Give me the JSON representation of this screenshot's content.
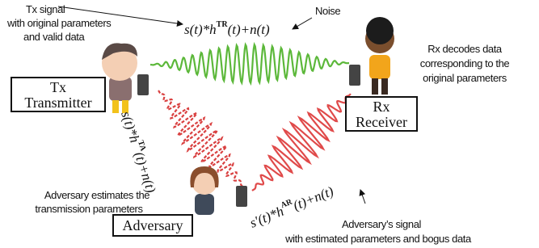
{
  "labels": {
    "tx_signal": [
      "Tx signal",
      "with original parameters",
      "and valid data"
    ],
    "noise": "Noise",
    "rx_decodes": [
      "Rx decodes data",
      "corresponding to the",
      "original parameters"
    ],
    "adversary_estimates": [
      "Adversary estimates the",
      "transmission parameters"
    ],
    "adversary_signal": [
      "Adversary’s signal",
      "with estimated parameters and bogus data"
    ]
  },
  "formulas": {
    "tr": {
      "base": "s(t)*h",
      "sup": "TR",
      "tail": "(t)+n(t)"
    },
    "ta": {
      "base": "s(t)*h",
      "sup": "TA",
      "tail": "(t)+n(t)"
    },
    "ar": {
      "base": "s′(t)*h",
      "sup": "AR",
      "tail": "(t)+n(t)"
    }
  },
  "nodes": {
    "tx": [
      "Tx",
      "Transmitter"
    ],
    "rx": [
      "Rx",
      "Receiver"
    ],
    "adversary": "Adversary"
  }
}
